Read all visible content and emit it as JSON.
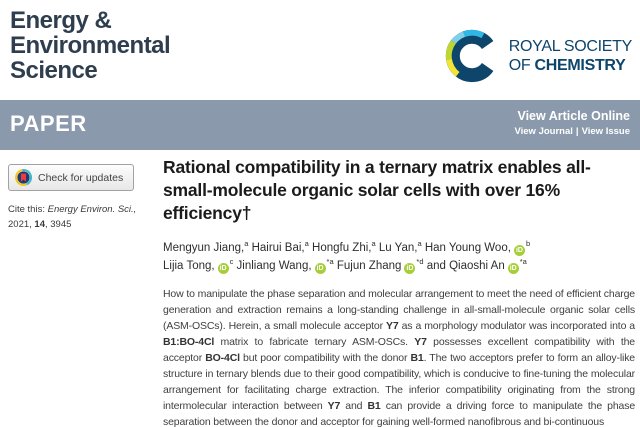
{
  "journal": {
    "title_line1": "Energy &",
    "title_line2": "Environmental",
    "title_line3": "Science"
  },
  "publisher": {
    "line1": "ROYAL SOCIETY",
    "line2_prefix": "OF ",
    "line2_bold": "CHEMISTRY"
  },
  "banner": {
    "article_type": "PAPER",
    "view_article_online": "View Article Online",
    "view_journal": "View Journal",
    "separator": "|",
    "view_issue": "View Issue"
  },
  "sidebar": {
    "check_updates_label": "Check for updates",
    "cite": {
      "prefix": "Cite this: ",
      "journal": "Energy Environ. Sci.,",
      "year": "2021, ",
      "volume": "14",
      "pages": ", 3945"
    }
  },
  "article": {
    "title": "Rational compatibility in a ternary matrix enables all-small-molecule organic solar cells with over 16% efficiency†",
    "orcid_icon_label": "iD",
    "authors": [
      {
        "name": "Mengyun Jiang,",
        "orcid": false,
        "sup": "a"
      },
      {
        "name": "Hairui Bai,",
        "orcid": false,
        "sup": "a"
      },
      {
        "name": "Hongfu Zhi,",
        "orcid": false,
        "sup": "a"
      },
      {
        "name": "Lu Yan,",
        "orcid": false,
        "sup": "a"
      },
      {
        "name": "Han Young Woo,",
        "orcid": true,
        "sup": "b",
        "br": true
      },
      {
        "name": "Lijia Tong,",
        "orcid": true,
        "sup": "c"
      },
      {
        "name": "Jinliang Wang,",
        "orcid": true,
        "sup": "*a"
      },
      {
        "name": "Fujun Zhang",
        "orcid": true,
        "sup": "*d"
      },
      {
        "name": "and Qiaoshi An",
        "orcid": true,
        "sup": "*a"
      }
    ],
    "abstract": [
      {
        "t": "How to manipulate the phase separation and molecular arrangement to meet the need of efficient charge generation and extraction remains a long-standing challenge in all-small-molecule organic solar cells (ASM-OSCs). Herein, a small molecule acceptor "
      },
      {
        "t": "Y7",
        "b": true
      },
      {
        "t": " as a morphology modulator was incorporated into a "
      },
      {
        "t": "B1:BO-4Cl",
        "b": true
      },
      {
        "t": " matrix to fabricate ternary ASM-OSCs. "
      },
      {
        "t": "Y7",
        "b": true
      },
      {
        "t": " possesses excellent compatibility with the acceptor "
      },
      {
        "t": "BO-4Cl",
        "b": true
      },
      {
        "t": " but poor compatibility with the donor "
      },
      {
        "t": "B1",
        "b": true
      },
      {
        "t": ". The two acceptors prefer to form an alloy-like structure in ternary blends due to their good compatibility, which is conducive to fine-tuning the molecular arrangement for facilitating charge extraction. The inferior compatibility originating from the strong intermolecular interaction between "
      },
      {
        "t": "Y7",
        "b": true
      },
      {
        "t": " and "
      },
      {
        "t": "B1",
        "b": true
      },
      {
        "t": " can provide a driving force to manipulate the phase separation between the donor and acceptor for gaining well-formed nanofibrous and bi-continuous"
      }
    ]
  },
  "colors": {
    "banner_bg": "#8a99ab",
    "journal_title": "#2f3e4e",
    "rsc_navy": "#0d456b",
    "rsc_light_blue": "#31b7e6",
    "rsc_pale_blue": "#7fd0e8",
    "rsc_green": "#bfd730",
    "rsc_yellow": "#f2e535",
    "orcid_green": "#a6ce39",
    "crossmark_red": "#ed3b43",
    "crossmark_navy": "#1d3b6d",
    "crossmark_yellow": "#f5c71c",
    "crossmark_teal": "#45b5c8"
  }
}
